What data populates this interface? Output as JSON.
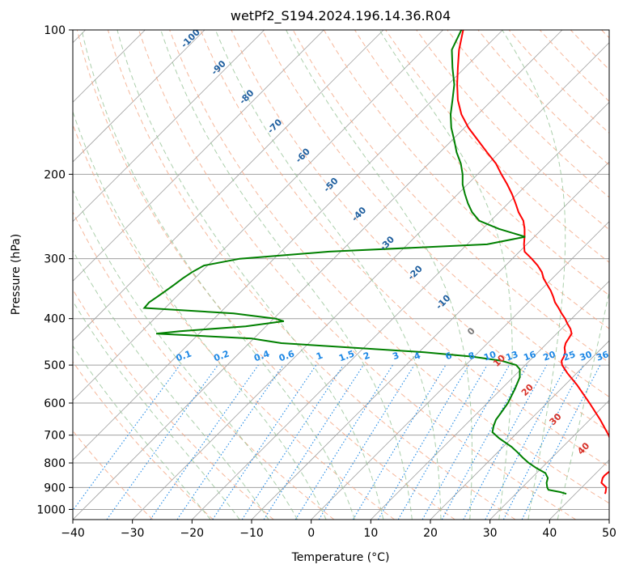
{
  "chart_data": {
    "type": "line",
    "subtype": "skew-t log-p diagram",
    "title": "wetPf2_S194.2024.196.14.36.R04",
    "xlabel": "Temperature (°C)",
    "ylabel": "Pressure (hPa)",
    "xlim": [
      -40,
      50
    ],
    "ylim": [
      1050,
      100
    ],
    "y_scale": "log",
    "grid": true,
    "x_ticks": [
      "−40",
      "−30",
      "−20",
      "−10",
      "0",
      "10",
      "20",
      "30",
      "40",
      "50"
    ],
    "y_ticks": [
      "100",
      "200",
      "300",
      "400",
      "500",
      "600",
      "700",
      "800",
      "900",
      "1000"
    ],
    "x_tick_values": [
      -40,
      -30,
      -20,
      -10,
      0,
      10,
      20,
      30,
      40,
      50
    ],
    "y_tick_values": [
      100,
      200,
      300,
      400,
      500,
      600,
      700,
      800,
      900,
      1000
    ],
    "dry_adiabat_labels": [
      "-100",
      "-90",
      "-80",
      "-70",
      "-60",
      "-50",
      "-40",
      "-30",
      "-20",
      "-10",
      "0",
      "10",
      "20",
      "30",
      "40"
    ],
    "mixing_ratio_labels": [
      "0.1",
      "0.2",
      "0.4",
      "0.6",
      "1",
      "1.5",
      "2",
      "3",
      "4",
      "6",
      "8",
      "10",
      "13",
      "16",
      "20",
      "25",
      "30",
      "36"
    ],
    "colors": {
      "temperature": "#ff0000",
      "dewpoint": "#008000",
      "isotherm_grid": "#a0a0a0",
      "dry_adiabat": "#f4a582",
      "moist_adiabat": "#8fbf8f",
      "mixing_ratio": "#1e88e5",
      "dry_label": "#1f5f9f",
      "warm_label": "#d73027"
    },
    "series": [
      {
        "key": "temperature",
        "points": [
          [
            100,
            25.5
          ],
          [
            110,
            24.8
          ],
          [
            120,
            24.6
          ],
          [
            130,
            24.5
          ],
          [
            140,
            24.6
          ],
          [
            150,
            25.2
          ],
          [
            160,
            26.4
          ],
          [
            170,
            28.0
          ],
          [
            180,
            29.5
          ],
          [
            190,
            31.0
          ],
          [
            200,
            31.9
          ],
          [
            210,
            32.9
          ],
          [
            220,
            33.7
          ],
          [
            230,
            34.3
          ],
          [
            240,
            34.8
          ],
          [
            250,
            35.6
          ],
          [
            260,
            35.8
          ],
          [
            270,
            35.8
          ],
          [
            280,
            35.7
          ],
          [
            290,
            35.8
          ],
          [
            300,
            37.0
          ],
          [
            310,
            38.0
          ],
          [
            320,
            38.7
          ],
          [
            330,
            39.0
          ],
          [
            340,
            39.6
          ],
          [
            350,
            40.2
          ],
          [
            360,
            40.6
          ],
          [
            370,
            40.9
          ],
          [
            380,
            41.5
          ],
          [
            390,
            42.0
          ],
          [
            400,
            42.6
          ],
          [
            410,
            43.0
          ],
          [
            420,
            43.5
          ],
          [
            430,
            43.7
          ],
          [
            440,
            43.2
          ],
          [
            450,
            42.7
          ],
          [
            460,
            42.5
          ],
          [
            470,
            42.6
          ],
          [
            480,
            42.4
          ],
          [
            490,
            42.0
          ],
          [
            500,
            42.1
          ],
          [
            520,
            43.0
          ],
          [
            550,
            44.6
          ],
          [
            600,
            46.7
          ],
          [
            650,
            48.5
          ],
          [
            700,
            49.9
          ],
          [
            750,
            50.8
          ],
          [
            800,
            50.8
          ],
          [
            830,
            50.2
          ],
          [
            850,
            49.2
          ],
          [
            860,
            48.9
          ],
          [
            880,
            48.7
          ],
          [
            900,
            49.5
          ],
          [
            920,
            49.4
          ],
          [
            928,
            49.3
          ]
        ]
      },
      {
        "key": "dewpoint",
        "points": [
          [
            100,
            25.2
          ],
          [
            110,
            23.6
          ],
          [
            120,
            23.7
          ],
          [
            130,
            24.0
          ],
          [
            140,
            23.7
          ],
          [
            150,
            23.4
          ],
          [
            160,
            23.5
          ],
          [
            170,
            24.0
          ],
          [
            180,
            24.4
          ],
          [
            190,
            25.1
          ],
          [
            200,
            25.4
          ],
          [
            210,
            25.4
          ],
          [
            220,
            25.8
          ],
          [
            230,
            26.3
          ],
          [
            240,
            27.0
          ],
          [
            250,
            28.2
          ],
          [
            260,
            31.5
          ],
          [
            270,
            35.9
          ],
          [
            280,
            29.5
          ],
          [
            290,
            3.0
          ],
          [
            300,
            -12.0
          ],
          [
            310,
            -18.0
          ],
          [
            320,
            -20.0
          ],
          [
            330,
            -21.6
          ],
          [
            340,
            -23.0
          ],
          [
            350,
            -24.4
          ],
          [
            360,
            -25.8
          ],
          [
            370,
            -27.2
          ],
          [
            380,
            -28.0
          ],
          [
            390,
            -13.0
          ],
          [
            400,
            -6.0
          ],
          [
            405,
            -4.6
          ],
          [
            415,
            -11.0
          ],
          [
            425,
            -22.0
          ],
          [
            430,
            -26.0
          ],
          [
            440,
            -10.0
          ],
          [
            450,
            -5.0
          ],
          [
            460,
            7.0
          ],
          [
            470,
            19.0
          ],
          [
            480,
            27.0
          ],
          [
            490,
            32.0
          ],
          [
            500,
            34.4
          ],
          [
            510,
            35.0
          ],
          [
            530,
            35.0
          ],
          [
            560,
            34.2
          ],
          [
            600,
            33.0
          ],
          [
            630,
            31.8
          ],
          [
            650,
            31.0
          ],
          [
            670,
            30.6
          ],
          [
            690,
            30.4
          ],
          [
            710,
            31.5
          ],
          [
            740,
            33.6
          ],
          [
            760,
            34.6
          ],
          [
            780,
            35.5
          ],
          [
            800,
            36.5
          ],
          [
            820,
            37.8
          ],
          [
            840,
            39.3
          ],
          [
            860,
            39.7
          ],
          [
            880,
            39.5
          ],
          [
            900,
            39.6
          ],
          [
            910,
            39.8
          ],
          [
            920,
            41.8
          ],
          [
            928,
            42.8
          ]
        ]
      }
    ]
  }
}
